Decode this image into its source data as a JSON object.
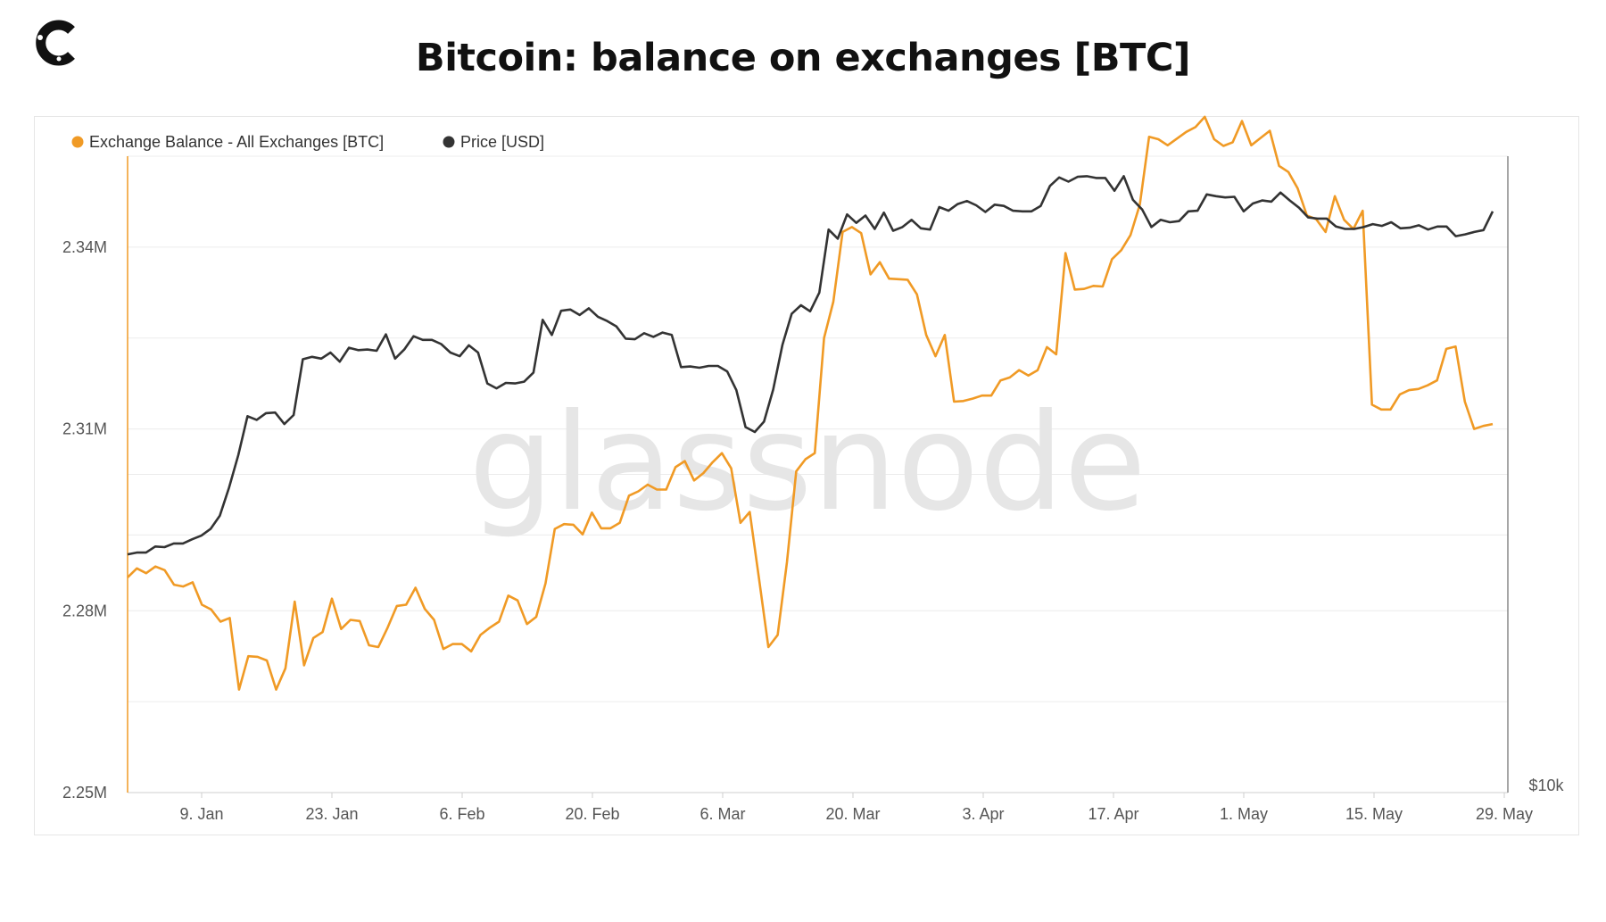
{
  "header": {
    "title": "Bitcoin: balance on exchanges [BTC]",
    "logo_icon": "coinglass-c-logo-icon"
  },
  "watermark": "glassnode",
  "chart_data": {
    "type": "line",
    "title": "Bitcoin: balance on exchanges [BTC]",
    "legend_position": "top-left",
    "grid": true,
    "x_range": [
      "2023-01-01",
      "2023-05-31"
    ],
    "x_ticks": [
      "9. Jan",
      "23. Jan",
      "6. Feb",
      "20. Feb",
      "6. Mar",
      "20. Mar",
      "3. Apr",
      "17. Apr",
      "1. May",
      "15. May",
      "29. May"
    ],
    "y_left": {
      "ticks": [
        "2.25M",
        "2.28M",
        "2.31M",
        "2.34M"
      ],
      "range": [
        2250000,
        2355000
      ]
    },
    "y_right": {
      "ticks": [
        "$10k"
      ]
    },
    "series": [
      {
        "name": "Exchange Balance - All Exchanges [BTC]",
        "color": "#f09a25",
        "axis": "left",
        "values": [
          2.2855,
          2.287,
          2.2862,
          2.2873,
          2.2867,
          2.2843,
          2.284,
          2.2847,
          2.281,
          2.2802,
          2.2782,
          2.2788,
          2.267,
          2.2725,
          2.2724,
          2.2718,
          2.267,
          2.2705,
          2.2815,
          2.271,
          2.2755,
          2.2765,
          2.282,
          2.277,
          2.2785,
          2.2783,
          2.2743,
          2.274,
          2.2772,
          2.2808,
          2.281,
          2.2838,
          2.2803,
          2.2785,
          2.2737,
          2.2745,
          2.2745,
          2.2733,
          2.276,
          2.2772,
          2.2782,
          2.2825,
          2.2817,
          2.2778,
          2.279,
          2.2845,
          2.2935,
          2.2943,
          2.2942,
          2.2926,
          2.2962,
          2.2936,
          2.2936,
          2.2945,
          2.299,
          2.2997,
          2.3008,
          2.3,
          2.3,
          2.3037,
          2.3047,
          2.3015,
          2.3027,
          2.3045,
          2.306,
          2.3035,
          2.2945,
          2.2963,
          2.2852,
          2.274,
          2.276,
          2.288,
          2.303,
          2.305,
          2.306,
          2.325,
          2.331,
          2.3425,
          2.3433,
          2.3423,
          2.3355,
          2.3375,
          2.3348,
          2.3347,
          2.3346,
          2.3322,
          2.3255,
          2.322,
          2.3255,
          2.3145,
          2.3146,
          2.315,
          2.3155,
          2.3155,
          2.318,
          2.3185,
          2.3197,
          2.3188,
          2.3197,
          2.3235,
          2.3223,
          2.339,
          2.333,
          2.3331,
          2.3336,
          2.3335,
          2.338,
          2.3395,
          2.342,
          2.347,
          2.3582,
          2.3578,
          2.3568,
          2.3579,
          2.359,
          2.3598,
          2.3615,
          2.3578,
          2.3567,
          2.3573,
          2.3608,
          2.3568,
          2.358,
          2.3592,
          2.3534,
          2.3524,
          2.3497,
          2.3452,
          2.3446,
          2.3425,
          2.3484,
          2.3445,
          2.343,
          2.346,
          2.314,
          2.3132,
          2.3132,
          2.3157,
          2.3164,
          2.3166,
          2.3172,
          2.318,
          2.3232,
          2.3236,
          2.3145,
          2.31,
          2.3105,
          2.3108
        ],
        "values_unit": "M BTC"
      },
      {
        "name": "Price [USD]",
        "color": "#333333",
        "axis": "right",
        "values_unit": "chart-scale (read on left axis grid)",
        "values": [
          2.2893,
          2.2896,
          2.2896,
          2.2906,
          2.2905,
          2.2911,
          2.2911,
          2.2918,
          2.2924,
          2.2935,
          2.2957,
          2.3003,
          2.3057,
          2.3121,
          2.3115,
          2.3126,
          2.3127,
          2.3108,
          2.3123,
          2.3215,
          2.3219,
          2.3216,
          2.3226,
          2.3211,
          2.3234,
          2.323,
          2.3231,
          2.3229,
          2.3256,
          2.3216,
          2.3231,
          2.3253,
          2.3247,
          2.3247,
          2.324,
          2.3226,
          2.322,
          2.3238,
          2.3226,
          2.3175,
          2.3167,
          2.3176,
          2.3175,
          2.3178,
          2.3193,
          2.328,
          2.3255,
          2.3295,
          2.3297,
          2.3288,
          2.3299,
          2.3285,
          2.3278,
          2.3269,
          2.3249,
          2.3248,
          2.3258,
          2.3252,
          2.3259,
          2.3255,
          2.3202,
          2.3203,
          2.3201,
          2.3204,
          2.3204,
          2.3195,
          2.3164,
          2.3103,
          2.3095,
          2.3112,
          2.3165,
          2.3239,
          2.329,
          2.3304,
          2.3294,
          2.3325,
          2.3429,
          2.3414,
          2.3454,
          2.344,
          2.3452,
          2.343,
          2.3457,
          2.3427,
          2.3433,
          2.3445,
          2.3431,
          2.3429,
          2.3466,
          2.346,
          2.3471,
          2.3476,
          2.3469,
          2.3458,
          2.347,
          2.3468,
          2.346,
          2.3459,
          2.3459,
          2.3468,
          2.3501,
          2.3515,
          2.3508,
          2.3516,
          2.3517,
          2.3514,
          2.3514,
          2.3493,
          2.3517,
          2.3478,
          2.3462,
          2.3433,
          2.3445,
          2.3441,
          2.3443,
          2.3459,
          2.346,
          2.3487,
          2.3484,
          2.3482,
          2.3483,
          2.3459,
          2.3472,
          2.3477,
          2.3475,
          2.349,
          2.3477,
          2.3465,
          2.3449,
          2.3447,
          2.3447,
          2.3434,
          2.343,
          2.343,
          2.3433,
          2.3438,
          2.3435,
          2.3441,
          2.3431,
          2.3432,
          2.3436,
          2.3429,
          2.3434,
          2.3434,
          2.3418,
          2.3421,
          2.3425,
          2.3428,
          2.3459
        ]
      }
    ]
  }
}
